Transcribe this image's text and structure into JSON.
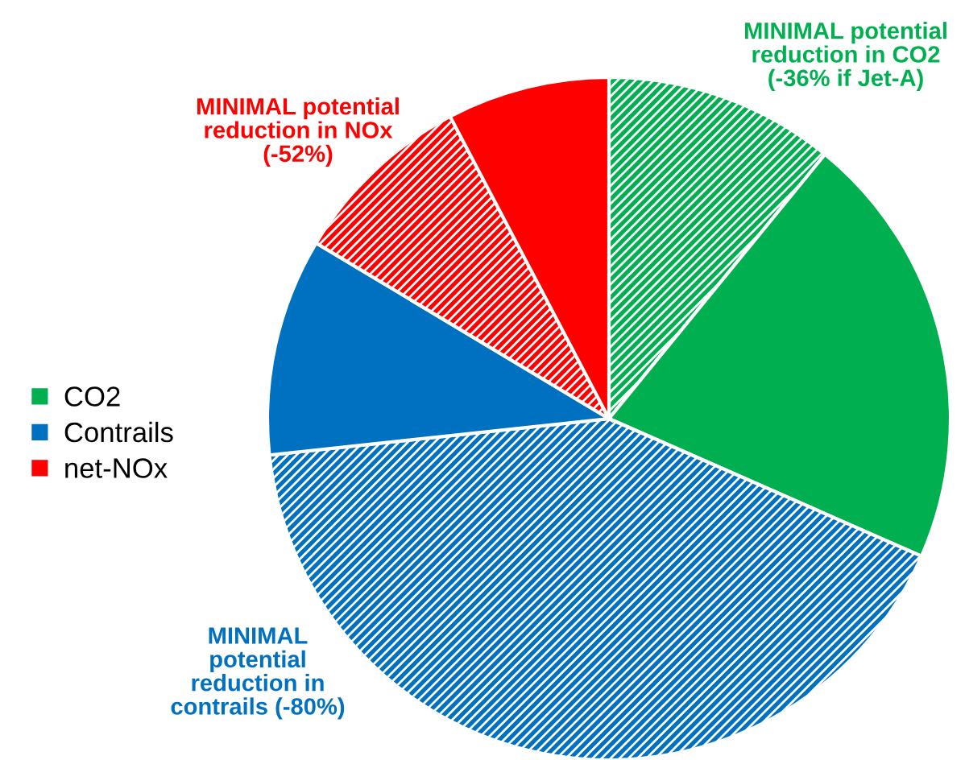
{
  "chart_data": {
    "type": "pie",
    "categories": [
      null,
      "CO2",
      null,
      "Contrails",
      null,
      "net-NOx"
    ],
    "values": [
      10.9,
      20.7,
      41.7,
      10.3,
      8.7,
      7.7
    ],
    "colors": [
      "#00b050",
      "#00b050",
      "#0070c0",
      "#0070c0",
      "#ff0000",
      "#ff0000"
    ],
    "annotations": [
      "MINIMAL potential\nreduction in CO2\n(-36% if Jet-A)",
      "MINIMAL\npotential\nreduction in\ncontrails (-80%)",
      "MINIMAL potential\nreduction in NOx\n(-52%)"
    ],
    "legend": "left"
  }
}
